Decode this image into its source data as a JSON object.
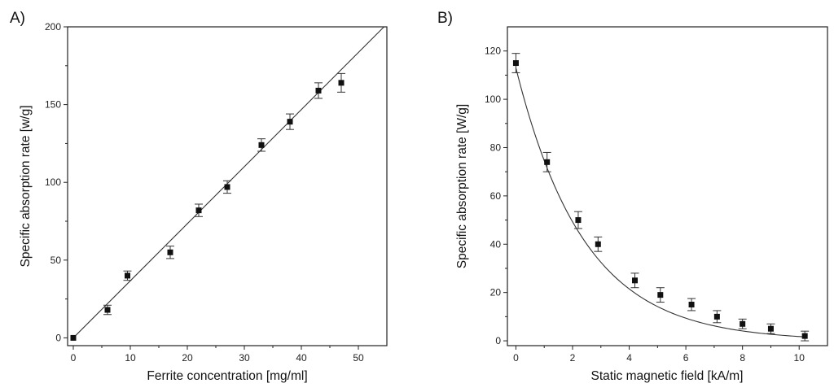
{
  "chart_data": [
    {
      "type": "scatter",
      "panel_label": "A)",
      "xlabel": "Ferrite concentration [mg/ml]",
      "ylabel": "Specific absorption rate [w/g]",
      "xlim": [
        -1,
        55
      ],
      "ylim": [
        -5,
        200
      ],
      "xticks": [
        0,
        10,
        20,
        30,
        40,
        50
      ],
      "yticks": [
        0,
        50,
        100,
        150,
        200
      ],
      "x": [
        0,
        6,
        9.5,
        17,
        22,
        27,
        33,
        38,
        43,
        47
      ],
      "y": [
        0,
        18,
        40,
        55,
        82,
        97,
        124,
        139,
        159,
        164
      ],
      "yerr": [
        0,
        3,
        3,
        4,
        4,
        4,
        4,
        5,
        5,
        6
      ],
      "fit": {
        "type": "linear",
        "x_range": [
          0,
          54.5
        ],
        "intercept": 0,
        "slope": 3.67
      }
    },
    {
      "type": "scatter",
      "panel_label": "B)",
      "xlabel": "Static magnetic field [kA/m]",
      "ylabel": "Specific absorption rate [W/g]",
      "xlim": [
        -0.3,
        11
      ],
      "ylim": [
        -2,
        130
      ],
      "xticks": [
        0,
        2,
        4,
        6,
        8,
        10
      ],
      "yticks": [
        0,
        20,
        40,
        60,
        80,
        100,
        120
      ],
      "x": [
        0,
        1.1,
        2.2,
        2.9,
        4.2,
        5.1,
        6.2,
        7.1,
        8.0,
        9.0,
        10.2
      ],
      "y": [
        115,
        74,
        50,
        40,
        25,
        19,
        15,
        10,
        7,
        5,
        2
      ],
      "yerr": [
        4,
        4,
        3.5,
        3,
        3,
        3,
        2.5,
        2.5,
        2,
        2,
        2
      ],
      "fit": {
        "type": "exponential_decay",
        "x_range": [
          0,
          10.2
        ],
        "a": 113,
        "b": 0.415,
        "c": 0
      }
    }
  ]
}
